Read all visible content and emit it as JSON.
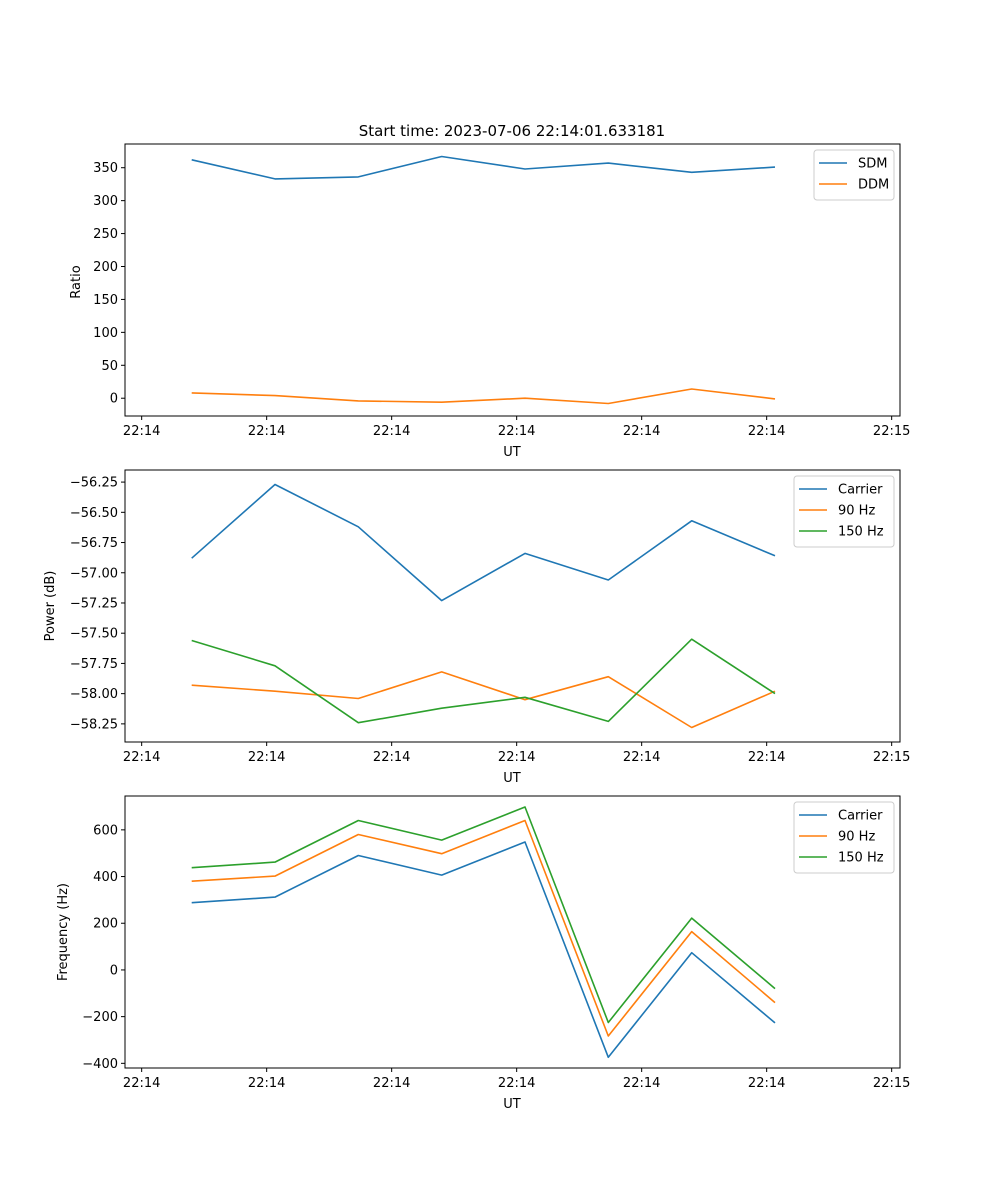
{
  "chart_data": [
    {
      "type": "line",
      "title": "Start time: 2023-07-06 22:14:01.633181",
      "xlabel": "UT",
      "ylabel": "Ratio",
      "xlim": [
        0,
        9.3
      ],
      "ylim": [
        -27,
        386
      ],
      "x": [
        0.8,
        1.8,
        2.8,
        3.8,
        4.8,
        5.8,
        6.8,
        7.8
      ],
      "xticks": [
        0.2,
        1.7,
        3.2,
        4.7,
        6.2,
        7.7,
        9.2
      ],
      "xtick_labels": [
        "22:14",
        "22:14",
        "22:14",
        "22:14",
        "22:14",
        "22:14",
        "22:15"
      ],
      "yticks": [
        0,
        50,
        100,
        150,
        200,
        250,
        300,
        350
      ],
      "ytick_labels": [
        "0",
        "50",
        "100",
        "150",
        "200",
        "250",
        "300",
        "350"
      ],
      "legend_position": "top-right",
      "series": [
        {
          "name": "SDM",
          "color": "#1f77b4",
          "values": [
            362,
            333,
            336,
            367,
            348,
            357,
            343,
            351
          ]
        },
        {
          "name": "DDM",
          "color": "#ff7f0e",
          "values": [
            8,
            4,
            -4,
            -6,
            0,
            -8,
            14,
            -1
          ]
        }
      ]
    },
    {
      "type": "line",
      "title": "",
      "xlabel": "UT",
      "ylabel": "Power (dB)",
      "xlim": [
        0,
        9.3
      ],
      "ylim": [
        -58.4,
        -56.15
      ],
      "x": [
        0.8,
        1.8,
        2.8,
        3.8,
        4.8,
        5.8,
        6.8,
        7.8
      ],
      "xticks": [
        0.2,
        1.7,
        3.2,
        4.7,
        6.2,
        7.7,
        9.2
      ],
      "xtick_labels": [
        "22:14",
        "22:14",
        "22:14",
        "22:14",
        "22:14",
        "22:14",
        "22:15"
      ],
      "yticks": [
        -58.25,
        -58.0,
        -57.75,
        -57.5,
        -57.25,
        -57.0,
        -56.75,
        -56.5,
        -56.25
      ],
      "ytick_labels": [
        "−58.25",
        "−58.00",
        "−57.75",
        "−57.50",
        "−57.25",
        "−57.00",
        "−56.75",
        "−56.50",
        "−56.25"
      ],
      "legend_position": "top-right",
      "series": [
        {
          "name": "Carrier",
          "color": "#1f77b4",
          "values": [
            -56.88,
            -56.27,
            -56.62,
            -57.23,
            -56.84,
            -57.06,
            -56.57,
            -56.86
          ]
        },
        {
          "name": "90 Hz",
          "color": "#ff7f0e",
          "values": [
            -57.93,
            -57.98,
            -58.04,
            -57.82,
            -58.05,
            -57.86,
            -58.28,
            -57.98
          ]
        },
        {
          "name": "150 Hz",
          "color": "#2ca02c",
          "values": [
            -57.56,
            -57.77,
            -58.24,
            -58.12,
            -58.03,
            -58.23,
            -57.55,
            -58.0
          ]
        }
      ]
    },
    {
      "type": "line",
      "title": "",
      "xlabel": "UT",
      "ylabel": "Frequency (Hz)",
      "xlim": [
        0,
        9.3
      ],
      "ylim": [
        -420,
        745
      ],
      "x": [
        0.8,
        1.8,
        2.8,
        3.8,
        4.8,
        5.8,
        6.8,
        7.8
      ],
      "xticks": [
        0.2,
        1.7,
        3.2,
        4.7,
        6.2,
        7.7,
        9.2
      ],
      "xtick_labels": [
        "22:14",
        "22:14",
        "22:14",
        "22:14",
        "22:14",
        "22:14",
        "22:15"
      ],
      "yticks": [
        -400,
        -200,
        0,
        200,
        400,
        600
      ],
      "ytick_labels": [
        "−400",
        "−200",
        "0",
        "200",
        "400",
        "600"
      ],
      "legend_position": "top-right",
      "series": [
        {
          "name": "Carrier",
          "color": "#1f77b4",
          "values": [
            288,
            312,
            490,
            406,
            548,
            -374,
            74,
            -227
          ]
        },
        {
          "name": "90 Hz",
          "color": "#ff7f0e",
          "values": [
            380,
            402,
            580,
            498,
            640,
            -283,
            164,
            -140
          ]
        },
        {
          "name": "150 Hz",
          "color": "#2ca02c",
          "values": [
            438,
            462,
            640,
            556,
            698,
            -225,
            222,
            -80
          ]
        }
      ]
    }
  ]
}
